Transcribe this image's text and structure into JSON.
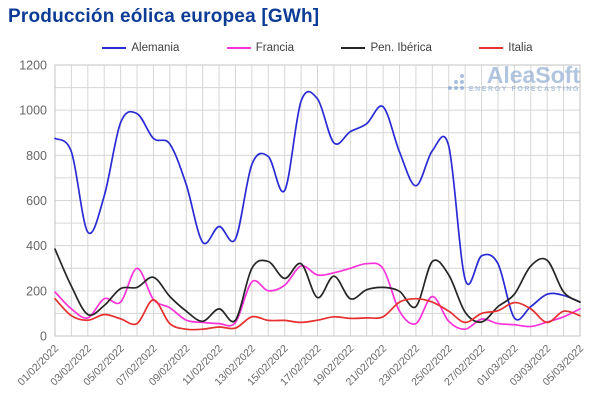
{
  "title": "Producción eólica europea [GWh]",
  "watermark": {
    "name": "AleaSoft",
    "tagline": "ENERGY FORECASTING"
  },
  "colors": {
    "title": "#0c3c96",
    "grid": "#d6d6d6",
    "plot_border": "#c3c3c3",
    "axis_text": "#666666",
    "watermark_blue": "#7b9cc9"
  },
  "chart_data": {
    "type": "line",
    "title": "Producción eólica europea [GWh]",
    "xlabel": "",
    "ylabel": "",
    "ylim": [
      0,
      1200
    ],
    "y_ticks": [
      0,
      200,
      400,
      600,
      800,
      1000,
      1200
    ],
    "grid_step_y": 100,
    "grid": "on",
    "legend_position": "top",
    "x_labels": [
      "01/02/2022",
      "03/02/2022",
      "05/02/2022",
      "07/02/2022",
      "09/02/2022",
      "11/02/2022",
      "13/02/2022",
      "15/02/2022",
      "17/02/2022",
      "19/02/2022",
      "21/02/2022",
      "23/02/2022",
      "25/02/2022",
      "27/02/2022",
      "01/03/2022",
      "03/03/2022",
      "05/03/2022"
    ],
    "x_label_step": 2,
    "series": [
      {
        "name": "Alemania",
        "color": "#2b2bd5",
        "values": [
          875,
          815,
          460,
          620,
          945,
          985,
          875,
          850,
          670,
          415,
          485,
          430,
          760,
          795,
          645,
          1040,
          1050,
          855,
          905,
          940,
          1015,
          815,
          665,
          820,
          840,
          250,
          355,
          320,
          80,
          130,
          185,
          180,
          150
        ]
      },
      {
        "name": "Francia",
        "color": "#fb33d8",
        "values": [
          195,
          120,
          80,
          165,
          150,
          300,
          162,
          125,
          70,
          60,
          55,
          60,
          240,
          200,
          225,
          310,
          270,
          280,
          300,
          320,
          298,
          110,
          55,
          175,
          65,
          30,
          75,
          55,
          50,
          42,
          62,
          85,
          120
        ]
      },
      {
        "name": "Pen. Ibérica",
        "color": "#262626",
        "values": [
          385,
          220,
          95,
          135,
          210,
          215,
          260,
          175,
          110,
          65,
          120,
          70,
          300,
          330,
          255,
          320,
          170,
          265,
          165,
          205,
          215,
          198,
          130,
          330,
          270,
          105,
          62,
          130,
          185,
          310,
          335,
          195,
          150
        ]
      },
      {
        "name": "Italia",
        "color": "#e62f2f",
        "values": [
          165,
          90,
          70,
          95,
          76,
          55,
          160,
          55,
          30,
          30,
          40,
          35,
          85,
          69,
          69,
          60,
          70,
          85,
          78,
          80,
          85,
          150,
          165,
          150,
          110,
          60,
          100,
          112,
          148,
          120,
          60,
          110,
          90
        ]
      }
    ]
  }
}
